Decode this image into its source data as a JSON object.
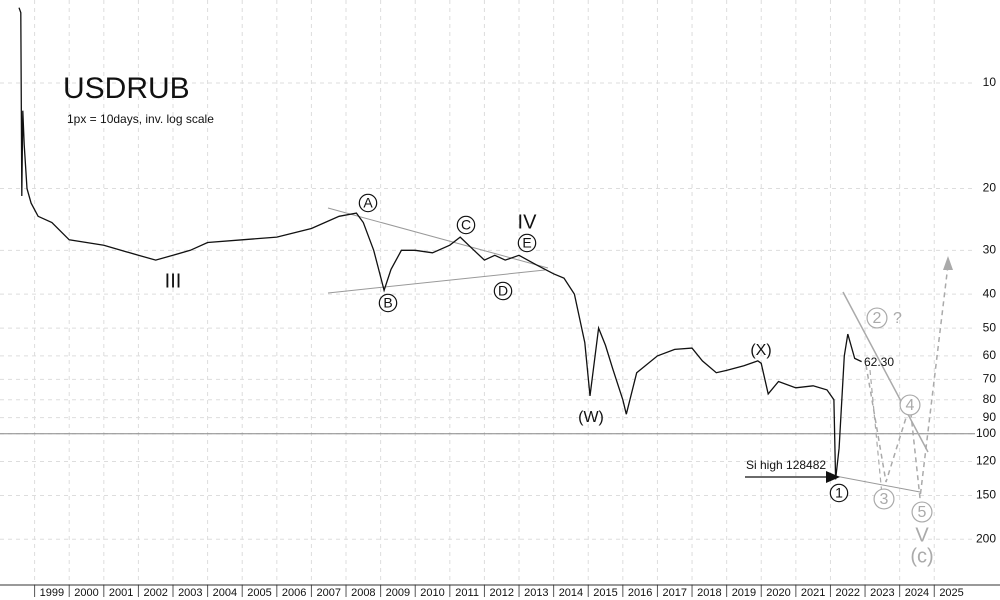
{
  "chart_data": {
    "type": "line",
    "title": "USDRUB",
    "subtitle": "1px = 10days, inv. log scale",
    "log_scale": true,
    "inverted": true,
    "grid": true,
    "xlim": [
      1998,
      2026.9
    ],
    "ylim": [
      5.8,
      270
    ],
    "xticks": [
      1999,
      2000,
      2001,
      2002,
      2003,
      2004,
      2005,
      2006,
      2007,
      2008,
      2009,
      2010,
      2011,
      2012,
      2013,
      2014,
      2015,
      2016,
      2017,
      2018,
      2019,
      2020,
      2021,
      2022,
      2023,
      2024,
      2025
    ],
    "yticks": [
      10,
      20,
      30,
      40,
      50,
      60,
      70,
      80,
      90,
      100,
      120,
      150,
      200
    ],
    "hline": 100,
    "series": [
      {
        "color": "#111111",
        "x": [
          1998.55,
          1998.6,
          1998.63,
          1998.66,
          1998.7,
          1998.78,
          1998.9,
          1999.1,
          1999.5,
          2000,
          2001,
          2002,
          2002.5,
          2003,
          2003.5,
          2004,
          2005,
          2006,
          2007,
          2007.8,
          2008.3,
          2008.5,
          2008.8,
          2009.1,
          2009.3,
          2009.6,
          2010,
          2010.5,
          2011,
          2011.3,
          2011.7,
          2012,
          2012.3,
          2012.6,
          2013,
          2013.5,
          2014,
          2014.3,
          2014.6,
          2014.9,
          2015.05,
          2015.3,
          2015.5,
          2015.7,
          2016.0,
          2016.1,
          2016.4,
          2017,
          2017.5,
          2018,
          2018.3,
          2018.7,
          2019,
          2019.5,
          2019.9,
          2020.0,
          2020.2,
          2020.5,
          2021,
          2021.5,
          2021.9,
          2022.1,
          2022.15,
          2022.25,
          2022.4,
          2022.5,
          2022.7,
          2022.9
        ],
        "values": [
          6.1,
          6.3,
          21,
          12,
          15,
          20,
          22,
          24,
          25,
          28,
          29,
          31,
          32,
          31,
          30,
          28.5,
          28,
          27.5,
          26,
          24,
          23.5,
          25,
          30,
          39,
          34,
          30,
          30,
          30.5,
          29,
          27.5,
          30,
          32,
          31,
          32,
          31,
          33,
          35,
          36,
          40,
          55,
          78,
          50,
          56,
          65,
          80,
          88,
          67,
          60,
          57.5,
          57,
          62,
          67,
          66,
          64,
          62,
          63,
          77,
          71,
          74,
          73,
          75,
          80,
          135,
          110,
          60,
          52,
          61,
          62.3
        ]
      }
    ],
    "annotations": [
      {
        "text": "A",
        "circled": true,
        "color": "#111111"
      },
      {
        "text": "B",
        "circled": true,
        "color": "#111111"
      },
      {
        "text": "C",
        "circled": true,
        "color": "#111111"
      },
      {
        "text": "D",
        "circled": true,
        "color": "#111111"
      },
      {
        "text": "E",
        "circled": true,
        "color": "#111111"
      },
      {
        "text": "IV",
        "circled": false,
        "color": "#111111"
      },
      {
        "text": "III",
        "circled": false,
        "color": "#111111"
      },
      {
        "text": "(W)",
        "circled": false,
        "color": "#111111"
      },
      {
        "text": "(X)",
        "circled": false,
        "color": "#111111"
      },
      {
        "text": "62.30",
        "circled": false,
        "color": "#111111"
      },
      {
        "text": "1",
        "circled": true,
        "color": "#111111"
      },
      {
        "text": "Si high 128482",
        "circled": false,
        "color": "#111111"
      },
      {
        "text": "2",
        "circled": true,
        "color": "#aaaaaa"
      },
      {
        "text": "?",
        "circled": false,
        "color": "#aaaaaa"
      },
      {
        "text": "3",
        "circled": true,
        "color": "#aaaaaa"
      },
      {
        "text": "4",
        "circled": true,
        "color": "#aaaaaa"
      },
      {
        "text": "5",
        "circled": true,
        "color": "#aaaaaa"
      },
      {
        "text": "V",
        "circled": false,
        "color": "#aaaaaa"
      },
      {
        "text": "(c)",
        "circled": false,
        "color": "#aaaaaa"
      }
    ]
  }
}
